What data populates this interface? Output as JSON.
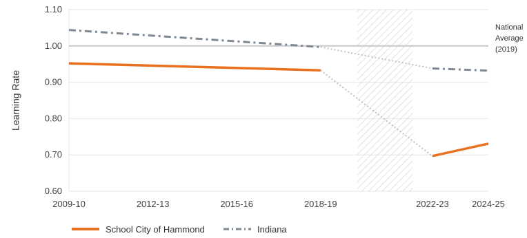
{
  "chart_data": {
    "type": "line",
    "ylabel": "Learning Rate",
    "ylim": [
      0.6,
      1.1
    ],
    "yticks": [
      0.6,
      0.7,
      0.8,
      0.9,
      1.0,
      1.1
    ],
    "ytick_labels": [
      "0.60",
      "0.70",
      "0.80",
      "0.90",
      "1.00",
      "1.10"
    ],
    "xlim": [
      2009,
      2024
    ],
    "xticks": [
      {
        "label": "2009-10",
        "x": 2009
      },
      {
        "label": "2012-13",
        "x": 2012
      },
      {
        "label": "2015-16",
        "x": 2015
      },
      {
        "label": "2018-19",
        "x": 2018
      },
      {
        "label": "2022-23",
        "x": 2022
      },
      {
        "label": "2024-25",
        "x": 2024
      }
    ],
    "grid": "horizontal",
    "reference_line": {
      "value": 1.0,
      "label_lines": [
        "National",
        "Average",
        "(2019)"
      ],
      "color": "#c8c8c8"
    },
    "shaded_region": {
      "x_start": 2019.3,
      "x_end": 2021.3,
      "pattern": "diagonal-hatch",
      "color": "#d5d5d5"
    },
    "series": [
      {
        "name": "School City of Hammond",
        "color": "#e8701e",
        "style": "solid",
        "segments": [
          {
            "style": "solid",
            "points": [
              [
                2009,
                0.952
              ],
              [
                2018,
                0.933
              ]
            ]
          },
          {
            "style": "dotted",
            "points": [
              [
                2018,
                0.933
              ],
              [
                2022,
                0.697
              ]
            ]
          },
          {
            "style": "solid",
            "points": [
              [
                2022,
                0.697
              ],
              [
                2024,
                0.731
              ]
            ]
          }
        ]
      },
      {
        "name": "Indiana",
        "color": "#7e8893",
        "style": "dashed",
        "segments": [
          {
            "style": "dashed",
            "points": [
              [
                2009,
                1.044
              ],
              [
                2018,
                0.997
              ]
            ]
          },
          {
            "style": "dotted",
            "points": [
              [
                2018,
                0.997
              ],
              [
                2022,
                0.938
              ]
            ]
          },
          {
            "style": "dashed",
            "points": [
              [
                2022,
                0.938
              ],
              [
                2024,
                0.932
              ]
            ]
          }
        ]
      }
    ],
    "legend_position": "bottom-left"
  }
}
